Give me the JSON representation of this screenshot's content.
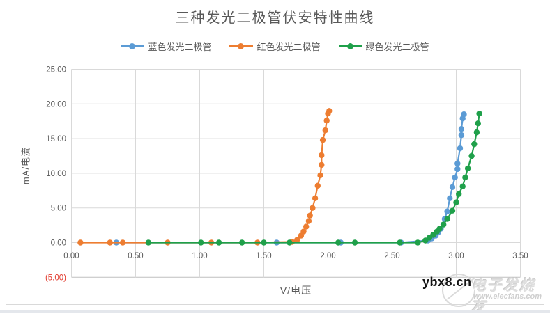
{
  "watermark": {
    "site": "ybx8.cn",
    "brand": "电子发烧友",
    "url": "www.elecfans.com"
  },
  "chart_data": {
    "type": "line",
    "title": "三种发光二极管伏安特性曲线",
    "xlabel": "V/电压",
    "ylabel": "mA/电流",
    "xlim": [
      0,
      3.5
    ],
    "ylim": [
      -5,
      25
    ],
    "grid": true,
    "legend_position": "top",
    "axis_text_color": "#595959",
    "gridline_color": "#d9d9d9",
    "axis_line_color": "#bfbfbf",
    "x_ticks": [
      {
        "value": 0.0,
        "label": "0.00"
      },
      {
        "value": 0.5,
        "label": "0.50"
      },
      {
        "value": 1.0,
        "label": "1.00"
      },
      {
        "value": 1.5,
        "label": "1.50"
      },
      {
        "value": 2.0,
        "label": "2.00"
      },
      {
        "value": 2.5,
        "label": "2.50"
      },
      {
        "value": 3.0,
        "label": "3.00"
      },
      {
        "value": 3.5,
        "label": "3.50"
      }
    ],
    "y_ticks": [
      {
        "value": 25,
        "label": "25.00"
      },
      {
        "value": 20,
        "label": "20.00"
      },
      {
        "value": 15,
        "label": "15.00"
      },
      {
        "value": 10,
        "label": "10.00"
      },
      {
        "value": 5,
        "label": "5.00"
      },
      {
        "value": 0,
        "label": "0.00"
      },
      {
        "value": -5,
        "label": "(5.00)",
        "color": "#e23b2e"
      }
    ],
    "series": [
      {
        "name": "蓝色发光二极管",
        "key": "blue-led",
        "color": "#5B9BD5",
        "points": [
          [
            0.35,
            0
          ],
          [
            1.6,
            0
          ],
          [
            2.1,
            0
          ],
          [
            2.57,
            0
          ],
          [
            2.78,
            0.3
          ],
          [
            2.81,
            0.6
          ],
          [
            2.84,
            1.0
          ],
          [
            2.86,
            1.5
          ],
          [
            2.88,
            2.0
          ],
          [
            2.9,
            2.6
          ],
          [
            2.91,
            3.4
          ],
          [
            2.93,
            4.5
          ],
          [
            2.95,
            6.4
          ],
          [
            2.97,
            8.0
          ],
          [
            2.99,
            9.4
          ],
          [
            3.01,
            10.6
          ],
          [
            3.01,
            11.4
          ],
          [
            3.03,
            13.6
          ],
          [
            3.04,
            15.5
          ],
          [
            3.04,
            16.4
          ],
          [
            3.05,
            17.9
          ],
          [
            3.06,
            18.5
          ]
        ]
      },
      {
        "name": "红色发光二极管",
        "key": "red-led",
        "color": "#ED7D31",
        "points": [
          [
            0.07,
            0
          ],
          [
            0.3,
            0
          ],
          [
            0.4,
            0
          ],
          [
            0.75,
            0
          ],
          [
            1.09,
            0
          ],
          [
            1.45,
            0
          ],
          [
            1.72,
            0.1
          ],
          [
            1.76,
            0.4
          ],
          [
            1.79,
            1.0
          ],
          [
            1.81,
            1.6
          ],
          [
            1.83,
            2.3
          ],
          [
            1.85,
            3.1
          ],
          [
            1.86,
            3.9
          ],
          [
            1.88,
            5.0
          ],
          [
            1.9,
            6.4
          ],
          [
            1.92,
            8.2
          ],
          [
            1.94,
            9.7
          ],
          [
            1.95,
            11.2
          ],
          [
            1.95,
            12.6
          ],
          [
            1.96,
            14.8
          ],
          [
            1.98,
            16.2
          ],
          [
            1.99,
            17.6
          ],
          [
            2.0,
            18.6
          ],
          [
            2.01,
            19.0
          ]
        ]
      },
      {
        "name": "绿色发光二极管",
        "key": "green-led",
        "color": "#1FA04A",
        "points": [
          [
            0.6,
            0
          ],
          [
            1.01,
            0
          ],
          [
            1.15,
            0
          ],
          [
            1.33,
            0
          ],
          [
            1.5,
            0
          ],
          [
            1.7,
            0
          ],
          [
            2.08,
            0
          ],
          [
            2.21,
            0
          ],
          [
            2.56,
            0
          ],
          [
            2.7,
            0
          ],
          [
            2.76,
            0.3
          ],
          [
            2.79,
            0.7
          ],
          [
            2.82,
            1.1
          ],
          [
            2.85,
            1.6
          ],
          [
            2.87,
            2.0
          ],
          [
            2.9,
            2.6
          ],
          [
            2.93,
            3.4
          ],
          [
            2.97,
            4.6
          ],
          [
            3.0,
            5.8
          ],
          [
            3.02,
            7.0
          ],
          [
            3.05,
            8.1
          ],
          [
            3.07,
            9.4
          ],
          [
            3.09,
            10.7
          ],
          [
            3.12,
            12.5
          ],
          [
            3.14,
            14.2
          ],
          [
            3.16,
            15.9
          ],
          [
            3.17,
            17.2
          ],
          [
            3.18,
            18.6
          ]
        ]
      }
    ]
  }
}
